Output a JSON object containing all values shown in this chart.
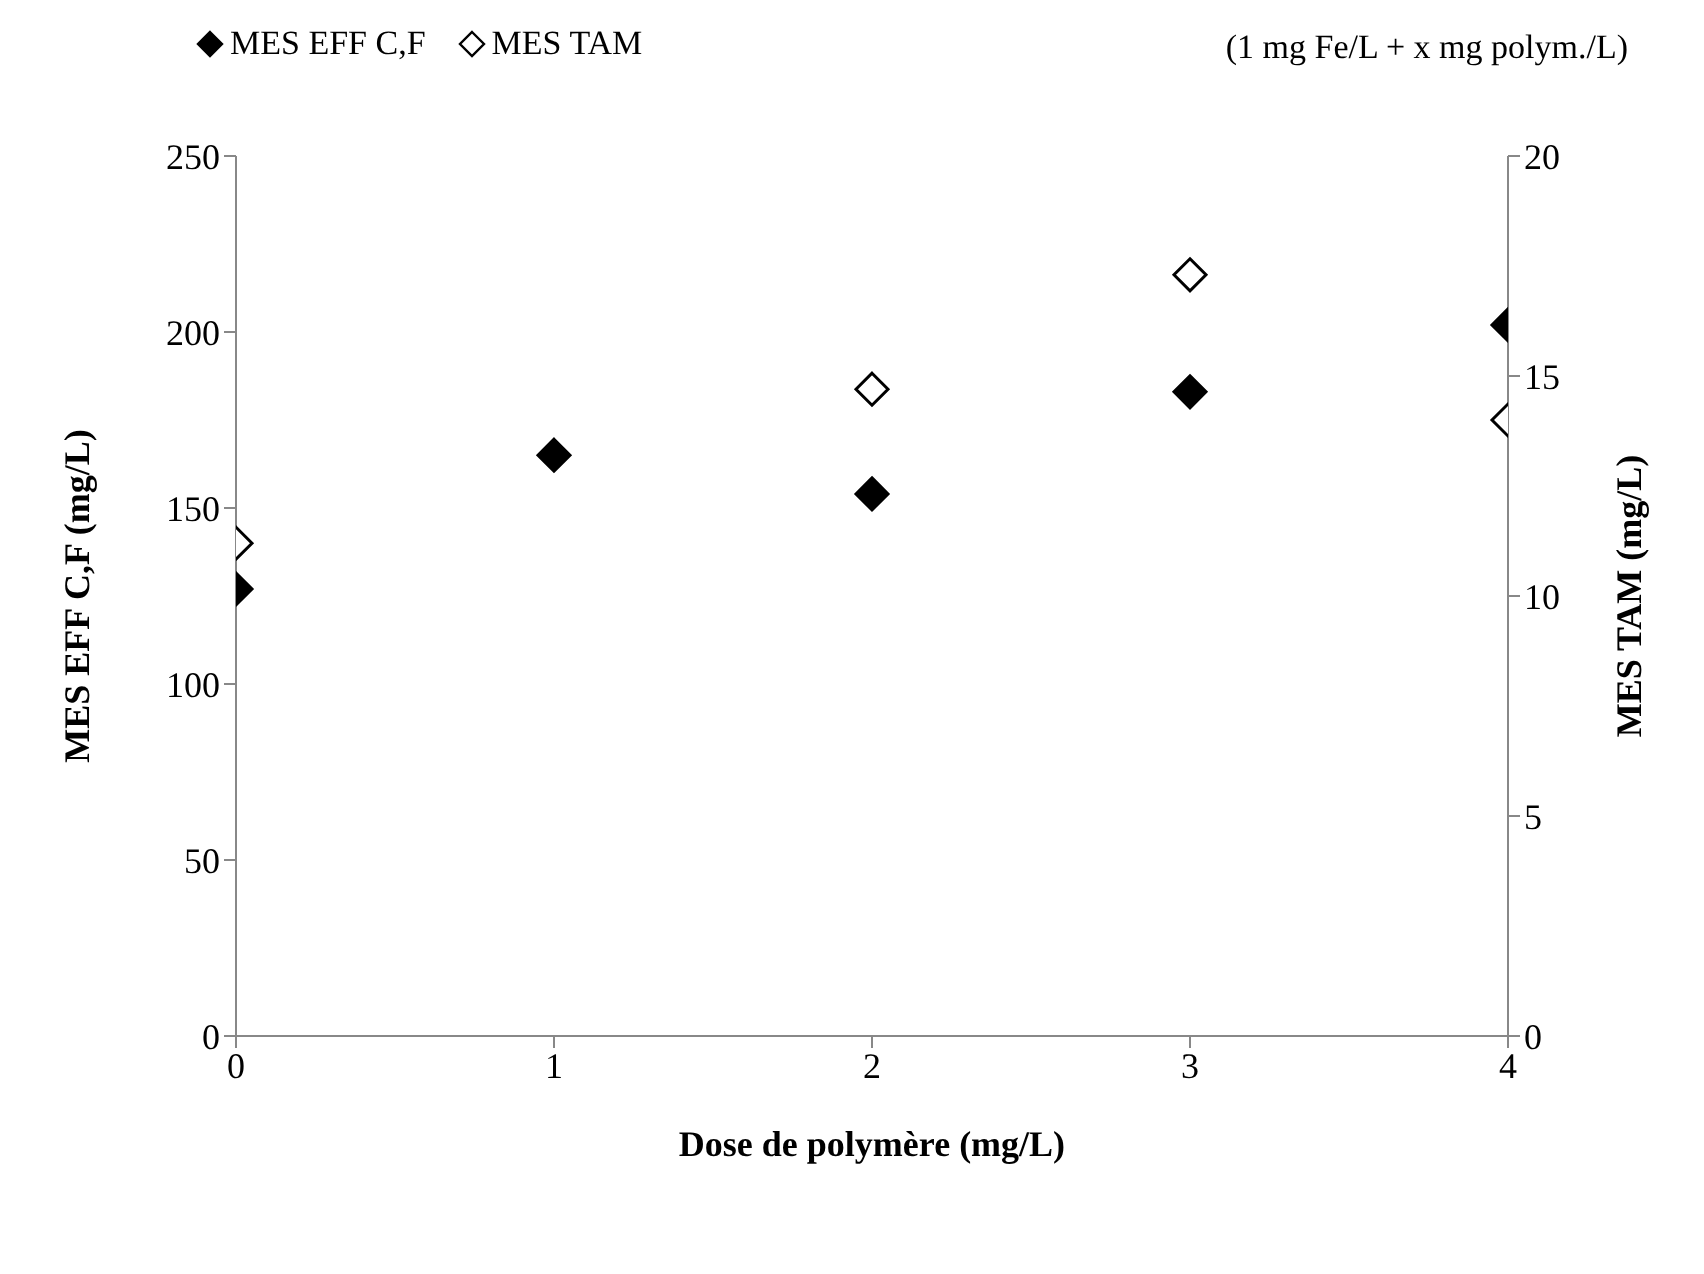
{
  "chart_data": {
    "type": "scatter",
    "xlabel": "Dose de polymère (mg/L)",
    "ylabel": "MES EFF C,F  (mg/L)",
    "y2label": "MES TAM (mg/L)",
    "annotations": [
      "(1 mg Fe/L + x mg polym./L)"
    ],
    "x": [
      0,
      1,
      2,
      3,
      4
    ],
    "series": [
      {
        "name": "MES EFF C,F",
        "color": "#000000",
        "values": [
          127,
          165,
          154,
          183,
          202
        ]
      },
      {
        "name": "MES TAM",
        "color": "#ffffff",
        "axis": "y2",
        "values": [
          11.2,
          null,
          14.7,
          17.3,
          14.0
        ]
      }
    ],
    "xlim": [
      0,
      4
    ],
    "xticks": [
      0,
      1,
      2,
      3,
      4
    ],
    "ylim": [
      0,
      250
    ],
    "yticks": [
      0,
      50,
      100,
      150,
      200,
      250
    ],
    "y2lim": [
      0,
      20
    ],
    "y2ticks": [
      0,
      5,
      10,
      15,
      20
    ],
    "marker": "diamond",
    "grid": false,
    "legend": "top left"
  }
}
